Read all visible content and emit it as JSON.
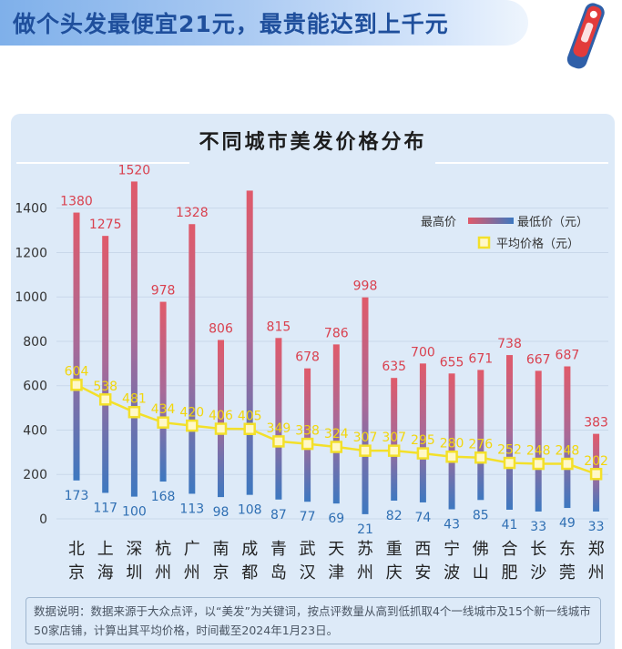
{
  "header": {
    "headline": "做个头发最便宜21元，最贵能达到上千元"
  },
  "chart_data": {
    "type": "bar",
    "title": "不同城市美发价格分布",
    "categories": [
      "北\n京",
      "上\n海",
      "深\n圳",
      "杭\n州",
      "广\n州",
      "南\n京",
      "成\n都",
      "青\n岛",
      "武\n汉",
      "天\n津",
      "苏\n州",
      "重\n庆",
      "西\n安",
      "宁\n波",
      "佛\n山",
      "合\n肥",
      "长\n沙",
      "东\n莞",
      "郑\n州"
    ],
    "series": [
      {
        "name": "最高价",
        "values": [
          1380,
          1275,
          1520,
          978,
          1328,
          806,
          1479,
          815,
          678,
          786,
          998,
          635,
          700,
          655,
          671,
          738,
          667,
          687,
          383
        ],
        "color": "#e05a6a"
      },
      {
        "name": "最低价（元）",
        "values": [
          173,
          117,
          100,
          168,
          113,
          98,
          108,
          87,
          77,
          69,
          21,
          82,
          74,
          43,
          85,
          41,
          33,
          49,
          33
        ],
        "color": "#3d78c0"
      },
      {
        "name": "平均价格（元）",
        "values": [
          604,
          538,
          481,
          434,
          420,
          406,
          405,
          349,
          338,
          324,
          307,
          307,
          295,
          280,
          276,
          252,
          248,
          248,
          202
        ],
        "color": "#f3e02a"
      }
    ],
    "max_labels": [
      "1380",
      "1275",
      "1520",
      "978",
      "1328",
      "806",
      "",
      "815",
      "678",
      "786",
      "998",
      "635",
      "700",
      "655",
      "671",
      "738",
      "667",
      "687",
      "383"
    ],
    "min_labels": [
      "173",
      "117",
      "100",
      "168",
      "113",
      "98",
      "108",
      "87",
      "77",
      "69",
      "21",
      "82",
      "74",
      "43",
      "85",
      "41",
      "33",
      "49",
      "33"
    ],
    "avg_labels": [
      "604",
      "538",
      "481",
      "434",
      "420",
      "406",
      "405",
      "349",
      "338",
      "324",
      "307",
      "307",
      "295",
      "280",
      "276",
      "252",
      "248",
      "248",
      "202"
    ],
    "yticks": [
      0,
      200,
      400,
      600,
      800,
      1000,
      1200,
      1400
    ],
    "ylim": [
      0,
      1560
    ],
    "legend_position": "top-right",
    "legend": {
      "high": "最高价",
      "low": "最低价（元）",
      "avg": "平均价格（元）"
    }
  },
  "note": {
    "text": "数据说明：数据来源于大众点评，以“美发”为关键词，按点评数量从高到低抓取4个一线城市及15个新一线城市50家店铺，计算出其平均价格，时间截至2024年1月23日。"
  },
  "colors": {
    "banner_text": "#1f4f9c",
    "panel": "#ddeaf8",
    "max_label": "#d9414f",
    "min_label": "#2f6fb3",
    "avg_label": "#f2d60c"
  }
}
